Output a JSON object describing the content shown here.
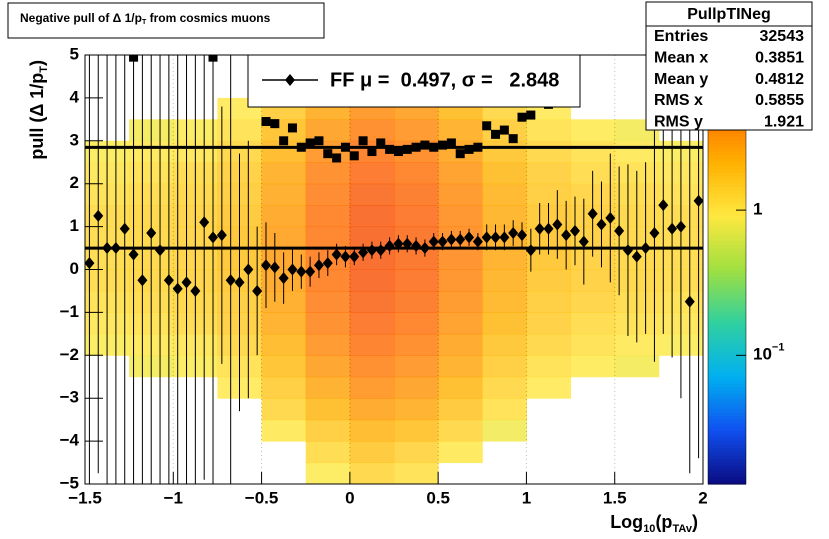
{
  "chart_data": {
    "type": "colz",
    "title": [
      {
        "text": "Negative pull of Δ 1/p",
        "sub": false
      },
      {
        "text": "T",
        "sub": true
      },
      {
        "text": " from cosmics muons",
        "sub": false
      }
    ],
    "xlabel": [
      {
        "text": "Log",
        "sub": false
      },
      {
        "text": "10",
        "sub": true
      },
      {
        "text": "(p",
        "sub": false
      },
      {
        "text": "TAv",
        "sub": true
      },
      {
        "text": ")",
        "sub": false
      }
    ],
    "ylabel": [
      {
        "text": "pull (Δ 1/p",
        "sub": false
      },
      {
        "text": "T",
        "sub": true
      },
      {
        "text": ")",
        "sub": false
      }
    ],
    "xlim": [
      -1.5,
      2
    ],
    "ylim": [
      -5,
      5
    ],
    "xticks": [
      {
        "value": -1.5,
        "label": "−1.5"
      },
      {
        "value": -1,
        "label": "−1"
      },
      {
        "value": -0.5,
        "label": "−0.5"
      },
      0,
      0.5,
      1,
      1.5,
      2
    ],
    "yticks": [
      {
        "value": -5,
        "label": "−5"
      },
      {
        "value": -4,
        "label": "−4"
      },
      {
        "value": -3,
        "label": "−3"
      },
      {
        "value": -2,
        "label": "−2"
      },
      {
        "value": -1,
        "label": "−1"
      },
      0,
      1,
      2,
      3,
      4,
      5
    ],
    "zlim": [
      0.013,
      11.7
    ],
    "zlog": true,
    "zticks": [
      1,
      {
        "value": 0.1,
        "label": "10",
        "superscript": "−1"
      }
    ],
    "palette": [
      "#0b0b82",
      "#1050f0",
      "#00b0f0",
      "#30d0a0",
      "#a0e040",
      "#ffe840",
      "#ffb000",
      "#ff6a00",
      "#e82000"
    ],
    "hist": {
      "xbins": [
        -1.5,
        -1.25,
        -1,
        -0.75,
        -0.5,
        -0.25,
        0,
        0.25,
        0.5,
        0.75,
        1,
        1.25,
        1.5,
        1.75,
        2
      ],
      "ybins": [
        -5,
        -4.5,
        -4,
        -3.5,
        -3,
        -2.5,
        -2,
        -1.5,
        -1,
        -0.5,
        0,
        0.5,
        1,
        1.5,
        2,
        2.5,
        3,
        3.5,
        4,
        4.5,
        5
      ],
      "z": [
        [
          null,
          null,
          null,
          null,
          null,
          null,
          0.88,
          1,
          1.1,
          1.2,
          1.2,
          1.2,
          1.2,
          1.1,
          1,
          0.88,
          null,
          null,
          null,
          null
        ],
        [
          null,
          null,
          null,
          null,
          null,
          0.81,
          0.95,
          1.1,
          1.2,
          1.3,
          1.3,
          1.3,
          1.3,
          1.2,
          1.1,
          0.95,
          0.81,
          null,
          null,
          null
        ],
        [
          null,
          null,
          null,
          null,
          null,
          0.87,
          1,
          1.2,
          1.3,
          1.4,
          1.4,
          1.4,
          1.4,
          1.3,
          1.2,
          1,
          0.87,
          null,
          null,
          null
        ],
        [
          null,
          null,
          null,
          null,
          0.94,
          1.1,
          1.3,
          1.5,
          1.6,
          1.7,
          1.8,
          1.8,
          1.7,
          1.6,
          1.5,
          1.3,
          1.1,
          0.94,
          null,
          null
        ],
        [
          null,
          null,
          0.96,
          1.3,
          1.6,
          1.9,
          2.2,
          2.5,
          2.7,
          2.9,
          3,
          3,
          2.9,
          2.7,
          2.5,
          2.2,
          1.9,
          1.6,
          1.3,
          0.96
        ],
        [
          0.9,
          1.2,
          1.6,
          2.1,
          2.6,
          3.1,
          3.7,
          4.2,
          4.6,
          4.9,
          5,
          5,
          4.9,
          4.6,
          4.2,
          3.7,
          3.1,
          2.6,
          2.1,
          1.6
        ],
        [
          1.3,
          1.7,
          2.2,
          2.9,
          3.6,
          4.3,
          5.1,
          5.8,
          6.4,
          6.8,
          7,
          7,
          6.8,
          6.4,
          5.8,
          5.1,
          4.3,
          3.6,
          2.9,
          2.2
        ],
        [
          1.1,
          1.4,
          1.9,
          2.5,
          3.1,
          3.7,
          4.4,
          5,
          5.5,
          5.8,
          6,
          6,
          5.8,
          5.5,
          5,
          4.4,
          3.7,
          3.1,
          2.5,
          1.9
        ],
        [
          null,
          0.96,
          1.3,
          1.7,
          2.1,
          2.5,
          2.9,
          3.3,
          3.6,
          3.9,
          4,
          4,
          3.9,
          3.6,
          3.3,
          2.9,
          2.5,
          2.1,
          1.7,
          1.3
        ],
        [
          null,
          null,
          0.8,
          1.1,
          1.3,
          1.6,
          1.8,
          2.1,
          2.3,
          2.4,
          2.5,
          2.5,
          2.4,
          2.3,
          2.1,
          1.8,
          1.6,
          1.3,
          1.1,
          0.8
        ],
        [
          null,
          null,
          null,
          null,
          0.94,
          1.1,
          1.3,
          1.5,
          1.6,
          1.7,
          1.8,
          1.8,
          1.7,
          1.6,
          1.5,
          1.3,
          1.1,
          0.94,
          null,
          null
        ],
        [
          null,
          null,
          null,
          null,
          null,
          0.93,
          1.1,
          1.2,
          1.4,
          1.5,
          1.5,
          1.5,
          1.5,
          1.4,
          1.2,
          1.1,
          0.93,
          null,
          null,
          null
        ],
        [
          null,
          null,
          null,
          null,
          null,
          0.81,
          0.95,
          1.1,
          1.2,
          1.3,
          1.3,
          1.3,
          1.3,
          1.2,
          1.1,
          0.95,
          0.81,
          null,
          null,
          null
        ],
        [
          null,
          null,
          null,
          null,
          null,
          null,
          0.88,
          1,
          1.1,
          1.2,
          1.2,
          1.2,
          1.2,
          1.1,
          1,
          0.88,
          null,
          null,
          null,
          null
        ]
      ]
    },
    "x": [
      -1.475,
      -1.425,
      -1.375,
      -1.325,
      -1.275,
      -1.225,
      -1.175,
      -1.125,
      -1.075,
      -1.025,
      -0.975,
      -0.925,
      -0.875,
      -0.825,
      -0.775,
      -0.725,
      -0.675,
      -0.625,
      -0.575,
      -0.525,
      -0.475,
      -0.425,
      -0.375,
      -0.325,
      -0.275,
      -0.225,
      -0.175,
      -0.125,
      -0.075,
      -0.025,
      0.025,
      0.075,
      0.125,
      0.175,
      0.225,
      0.275,
      0.325,
      0.375,
      0.425,
      0.475,
      0.525,
      0.575,
      0.625,
      0.675,
      0.725,
      0.775,
      0.825,
      0.875,
      0.925,
      0.975,
      1.025,
      1.075,
      1.125,
      1.175,
      1.225,
      1.275,
      1.325,
      1.375,
      1.425,
      1.475,
      1.525,
      1.575,
      1.625,
      1.675,
      1.725,
      1.775,
      1.825,
      1.875,
      1.925,
      1.975
    ],
    "series": [
      {
        "name": "FF μ =  0.497, σ =   2.848",
        "color": "#000000",
        "marker": "diamond",
        "values": [
          0.15,
          1.25,
          0.5,
          0.5,
          0.95,
          0.35,
          -0.25,
          0.85,
          0.45,
          -0.25,
          -0.45,
          -0.3,
          -0.5,
          1.1,
          0.75,
          0.8,
          -0.25,
          -0.3,
          0,
          -0.5,
          0.1,
          0.05,
          -0.2,
          0,
          -0.05,
          -0.05,
          0.1,
          0.15,
          0.35,
          0.3,
          0.3,
          0.4,
          0.45,
          0.45,
          0.55,
          0.6,
          0.6,
          0.55,
          0.5,
          0.65,
          0.65,
          0.7,
          0.7,
          0.75,
          0.65,
          0.75,
          0.75,
          0.75,
          0.85,
          0.8,
          0.45,
          0.95,
          0.95,
          1.05,
          0.8,
          0.9,
          0.65,
          1.3,
          1.05,
          1.2,
          0.9,
          0.45,
          0.3,
          0.5,
          0.85,
          1.5,
          0.95,
          1.0,
          -0.75,
          1.6
        ],
        "errors": [
          6,
          6,
          6,
          6,
          6,
          6,
          6,
          6,
          6,
          6,
          6,
          6,
          6,
          6,
          6,
          3,
          6,
          3,
          3,
          1.5,
          1,
          0.8,
          0.6,
          0.5,
          0.4,
          0.35,
          0.3,
          0.3,
          0.25,
          0.25,
          0.2,
          0.2,
          0.2,
          0.2,
          0.2,
          0.2,
          0.2,
          0.2,
          0.2,
          0.2,
          0.2,
          0.2,
          0.2,
          0.2,
          0.2,
          0.3,
          0.3,
          0.3,
          0.3,
          0.3,
          0.5,
          0.6,
          0.6,
          0.8,
          0.8,
          0.8,
          1,
          1,
          1,
          1.5,
          1.5,
          2,
          2,
          2,
          3,
          3,
          3,
          4,
          4,
          6
        ]
      },
      {
        "color": "#000000",
        "marker": "square",
        "values": [
          null,
          null,
          null,
          null,
          null,
          4.95,
          null,
          null,
          null,
          null,
          null,
          null,
          null,
          null,
          4.95,
          null,
          null,
          null,
          null,
          null,
          3.45,
          3.4,
          3.0,
          3.3,
          2.85,
          2.95,
          3.0,
          2.7,
          2.6,
          2.85,
          2.65,
          3.0,
          2.75,
          2.95,
          2.8,
          2.75,
          2.8,
          2.85,
          2.9,
          2.85,
          2.9,
          2.95,
          2.7,
          2.8,
          2.85,
          3.35,
          3.15,
          3.25,
          3.05,
          3.55,
          3.6,
          null,
          3.85,
          null,
          null,
          null,
          null,
          null,
          null,
          null,
          null,
          null,
          null,
          null,
          null,
          null,
          null,
          null,
          null,
          null
        ]
      }
    ],
    "lines": [
      0.497,
      2.848
    ],
    "stats": {
      "title": "PullpTINeg",
      "rows": [
        [
          "Entries",
          "32543"
        ],
        [
          "Mean x",
          "0.3851"
        ],
        [
          "Mean y",
          "0.4812"
        ],
        [
          "RMS x",
          "0.5855"
        ],
        [
          "RMS y",
          "1.921"
        ]
      ]
    }
  }
}
